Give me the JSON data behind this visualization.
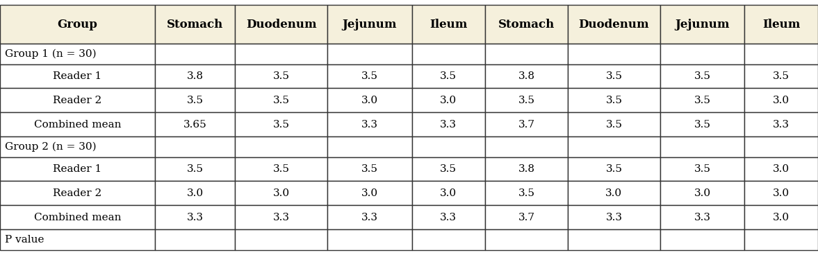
{
  "col_headers": [
    "Group",
    "Stomach",
    "Duodenum",
    "Jejunum",
    "Ileum",
    "Stomach",
    "Duodenum",
    "Jejunum",
    "Ileum"
  ],
  "rows": [
    [
      "Group 1 (n = 30)",
      "",
      "",
      "",
      "",
      "",
      "",
      "",
      ""
    ],
    [
      "Reader 1",
      "3.8",
      "3.5",
      "3.5",
      "3.5",
      "3.8",
      "3.5",
      "3.5",
      "3.5"
    ],
    [
      "Reader 2",
      "3.5",
      "3.5",
      "3.0",
      "3.0",
      "3.5",
      "3.5",
      "3.5",
      "3.0"
    ],
    [
      "Combined mean",
      "3.65",
      "3.5",
      "3.3",
      "3.3",
      "3.7",
      "3.5",
      "3.5",
      "3.3"
    ],
    [
      "Group 2 (n = 30)",
      "",
      "",
      "",
      "",
      "",
      "",
      "",
      ""
    ],
    [
      "Reader 1",
      "3.5",
      "3.5",
      "3.5",
      "3.5",
      "3.8",
      "3.5",
      "3.5",
      "3.0"
    ],
    [
      "Reader 2",
      "3.0",
      "3.0",
      "3.0",
      "3.0",
      "3.5",
      "3.0",
      "3.0",
      "3.0"
    ],
    [
      "Combined mean",
      "3.3",
      "3.3",
      "3.3",
      "3.3",
      "3.7",
      "3.3",
      "3.3",
      "3.0"
    ],
    [
      "P value",
      "",
      "",
      "",
      "",
      "",
      "",
      "",
      ""
    ]
  ],
  "header_bg": "#f5f0dc",
  "body_bg": "#ffffff",
  "border_color": "#333333",
  "text_color": "#000000",
  "header_font_size": 12,
  "cell_font_size": 11,
  "group_row_indices": [
    0,
    4,
    8
  ],
  "col_widths": [
    1.65,
    0.85,
    0.98,
    0.9,
    0.78,
    0.88,
    0.98,
    0.9,
    0.78
  ]
}
